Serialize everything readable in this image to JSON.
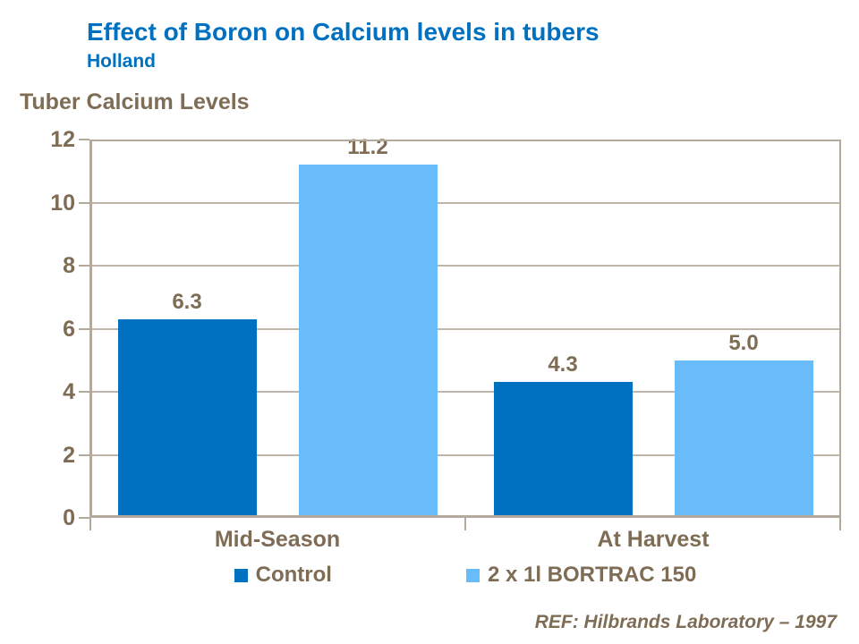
{
  "header": {
    "title": "Effect of Boron on Calcium levels in tubers",
    "subtitle": "Holland"
  },
  "footer": {
    "ref": "REF: Hilbrands Laboratory – 1997"
  },
  "colors": {
    "title_blue": "#0070C0",
    "text_brown": "#7E6C55",
    "axis_frame": "#B3A99C",
    "gridline": "#BFB5A9",
    "series_control": "#0070C0",
    "series_bortrac": "#67BCF9"
  },
  "chart_data": {
    "type": "bar",
    "title": "Tuber Calcium Levels",
    "categories": [
      "Mid-Season",
      "At Harvest"
    ],
    "series": [
      {
        "name": "Control",
        "color": "#0070C0",
        "values": [
          6.3,
          4.3
        ]
      },
      {
        "name": "2 x 1l BORTRAC 150",
        "color": "#67BCF9",
        "values": [
          11.2,
          5.0
        ]
      }
    ],
    "data_labels": {
      "Control": [
        "6.3",
        "4.3"
      ],
      "2 x 1l BORTRAC 150": [
        "11.2",
        "5.0"
      ]
    },
    "xlabel": "",
    "ylabel": "",
    "ylim": [
      0,
      12
    ],
    "yticks": [
      0,
      2,
      4,
      6,
      8,
      10,
      12
    ],
    "grid": true,
    "legend_position": "bottom"
  }
}
